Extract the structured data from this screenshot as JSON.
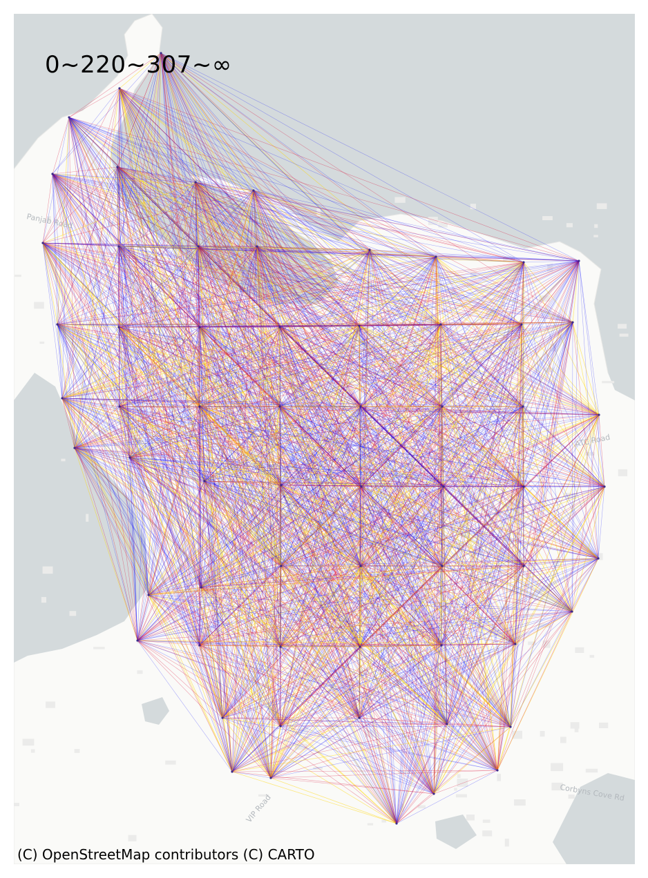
{
  "legend": {
    "text": "0~220~307~∞"
  },
  "attribution": "(C) OpenStreetMap contributors (C) CARTO",
  "road_labels": [
    "Panjab Road",
    "VIP Road",
    "Corbyns Cove Rd",
    "ATC Road"
  ],
  "colors": {
    "water": "#d4dadc",
    "land": "#fafaf8",
    "land_edge": "#e6e6e3",
    "building": "#ebebea",
    "band_low": "#0000ff",
    "band_mid": "#dc143c",
    "band_high": "#ffd700"
  },
  "bands": [
    "0~220",
    "220~307",
    "307~∞"
  ]
}
